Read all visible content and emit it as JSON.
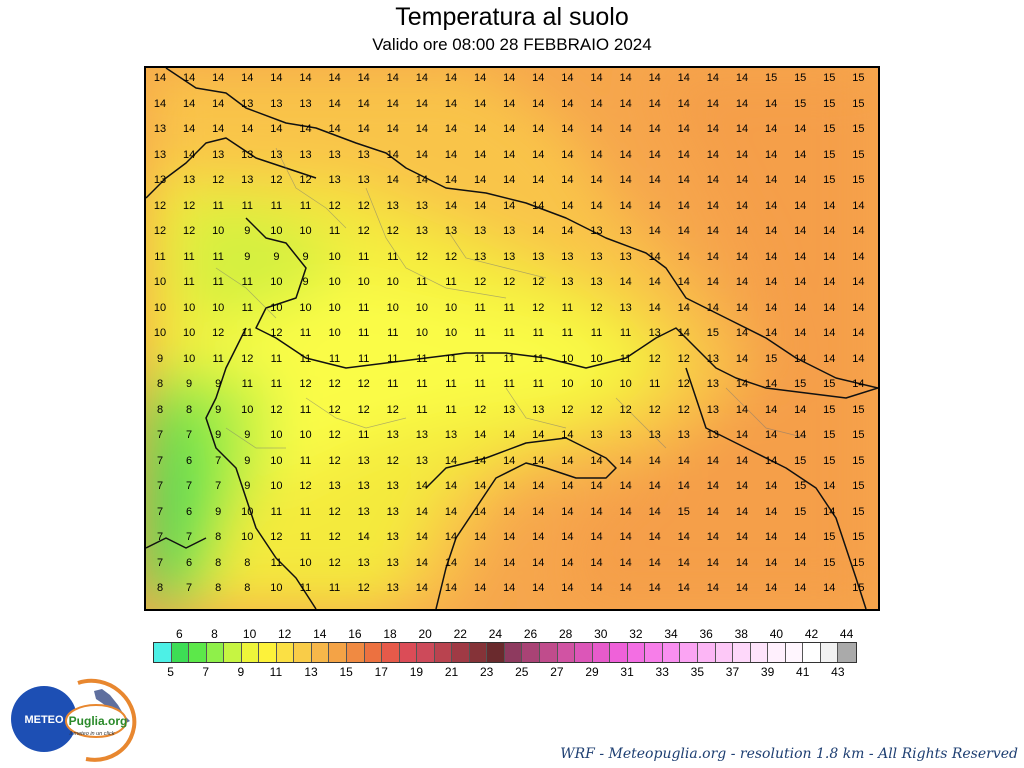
{
  "title": "Temperatura al suolo",
  "subtitle": "Valido ore 08:00 28 FEBBRAIO 2024",
  "footer": "WRF - Meteopuglia.org - resolution 1.8 km - All Rights Reserved",
  "logo": {
    "left_text": "METEO",
    "right_text": "Puglia.org",
    "tagline": "il meteo in un click"
  },
  "map": {
    "variable": "surface temperature",
    "unit": "°C",
    "grid_values": [
      [
        14,
        14,
        14,
        14,
        14,
        14,
        14,
        14,
        14,
        14,
        14,
        14,
        14,
        14,
        14,
        14,
        14,
        14,
        14,
        14,
        14,
        15,
        15,
        15,
        15
      ],
      [
        14,
        14,
        14,
        13,
        13,
        13,
        14,
        14,
        14,
        14,
        14,
        14,
        14,
        14,
        14,
        14,
        14,
        14,
        14,
        14,
        14,
        14,
        15,
        15,
        15
      ],
      [
        13,
        14,
        14,
        14,
        14,
        14,
        14,
        14,
        14,
        14,
        14,
        14,
        14,
        14,
        14,
        14,
        14,
        14,
        14,
        14,
        14,
        14,
        14,
        15,
        15
      ],
      [
        13,
        14,
        13,
        13,
        13,
        13,
        13,
        13,
        14,
        14,
        14,
        14,
        14,
        14,
        14,
        14,
        14,
        14,
        14,
        14,
        14,
        14,
        14,
        15,
        15
      ],
      [
        13,
        13,
        12,
        13,
        12,
        12,
        13,
        13,
        14,
        14,
        14,
        14,
        14,
        14,
        14,
        14,
        14,
        14,
        14,
        14,
        14,
        14,
        14,
        15,
        15
      ],
      [
        12,
        12,
        11,
        11,
        11,
        11,
        12,
        12,
        13,
        13,
        14,
        14,
        14,
        14,
        14,
        14,
        14,
        14,
        14,
        14,
        14,
        14,
        14,
        14,
        14
      ],
      [
        12,
        12,
        10,
        9,
        10,
        10,
        11,
        12,
        12,
        13,
        13,
        13,
        13,
        14,
        14,
        13,
        13,
        14,
        14,
        14,
        14,
        14,
        14,
        14,
        14
      ],
      [
        11,
        11,
        11,
        9,
        9,
        9,
        10,
        11,
        11,
        12,
        12,
        13,
        13,
        13,
        13,
        13,
        13,
        14,
        14,
        14,
        14,
        14,
        14,
        14,
        14
      ],
      [
        10,
        11,
        11,
        11,
        10,
        9,
        10,
        10,
        10,
        11,
        11,
        12,
        12,
        12,
        13,
        13,
        14,
        14,
        14,
        14,
        14,
        14,
        14,
        14,
        14
      ],
      [
        10,
        10,
        10,
        11,
        10,
        10,
        10,
        11,
        10,
        10,
        10,
        11,
        11,
        12,
        11,
        12,
        13,
        14,
        14,
        14,
        14,
        14,
        14,
        14,
        14
      ],
      [
        10,
        10,
        12,
        11,
        12,
        11,
        10,
        11,
        11,
        10,
        10,
        11,
        11,
        11,
        11,
        11,
        11,
        13,
        14,
        15,
        14,
        14,
        14,
        14,
        14
      ],
      [
        9,
        10,
        11,
        12,
        11,
        11,
        11,
        11,
        11,
        11,
        11,
        11,
        11,
        11,
        10,
        10,
        11,
        12,
        12,
        13,
        14,
        15,
        14,
        14,
        14
      ],
      [
        8,
        9,
        9,
        11,
        11,
        12,
        12,
        12,
        11,
        11,
        11,
        11,
        11,
        11,
        10,
        10,
        10,
        11,
        12,
        13,
        14,
        14,
        15,
        15,
        14
      ],
      [
        8,
        8,
        9,
        10,
        12,
        11,
        12,
        12,
        12,
        11,
        11,
        12,
        13,
        13,
        12,
        12,
        12,
        12,
        12,
        13,
        14,
        14,
        14,
        15,
        15
      ],
      [
        7,
        7,
        9,
        9,
        10,
        10,
        12,
        11,
        13,
        13,
        13,
        14,
        14,
        14,
        14,
        13,
        13,
        13,
        13,
        13,
        14,
        14,
        14,
        15,
        15
      ],
      [
        7,
        6,
        7,
        9,
        10,
        11,
        12,
        13,
        12,
        13,
        14,
        14,
        14,
        14,
        14,
        14,
        14,
        14,
        14,
        14,
        14,
        14,
        15,
        15,
        15
      ],
      [
        7,
        7,
        7,
        9,
        10,
        12,
        13,
        13,
        13,
        14,
        14,
        14,
        14,
        14,
        14,
        14,
        14,
        14,
        14,
        14,
        14,
        14,
        15,
        14,
        15
      ],
      [
        7,
        6,
        9,
        10,
        11,
        11,
        12,
        13,
        13,
        14,
        14,
        14,
        14,
        14,
        14,
        14,
        14,
        14,
        15,
        14,
        14,
        14,
        15,
        14,
        15
      ],
      [
        7,
        7,
        8,
        10,
        12,
        11,
        12,
        14,
        13,
        14,
        14,
        14,
        14,
        14,
        14,
        14,
        14,
        14,
        14,
        14,
        14,
        14,
        14,
        15,
        15
      ],
      [
        7,
        6,
        8,
        8,
        11,
        10,
        12,
        13,
        13,
        14,
        14,
        14,
        14,
        14,
        14,
        14,
        14,
        14,
        14,
        14,
        14,
        14,
        14,
        15,
        15
      ],
      [
        8,
        7,
        8,
        8,
        10,
        11,
        11,
        12,
        13,
        14,
        14,
        14,
        14,
        14,
        14,
        14,
        14,
        14,
        14,
        14,
        14,
        14,
        14,
        14,
        15
      ]
    ]
  },
  "legend": {
    "top_labels": [
      "6",
      "8",
      "10",
      "12",
      "14",
      "16",
      "18",
      "20",
      "22",
      "24",
      "26",
      "28",
      "30",
      "32",
      "34",
      "36",
      "38",
      "40",
      "42",
      "44"
    ],
    "bottom_labels": [
      "5",
      "7",
      "9",
      "11",
      "13",
      "15",
      "17",
      "19",
      "21",
      "23",
      "25",
      "27",
      "29",
      "31",
      "33",
      "35",
      "37",
      "39",
      "41",
      "43"
    ],
    "colors": [
      "#4df0e6",
      "#3ddd55",
      "#5ce84a",
      "#8ff04a",
      "#c6f542",
      "#eef53a",
      "#fdf23a",
      "#fbe044",
      "#f9cc48",
      "#f6b74a",
      "#f4a346",
      "#f08a42",
      "#ec7140",
      "#e65a4a",
      "#db4c57",
      "#cd4a5a",
      "#b9434f",
      "#a03a45",
      "#853338",
      "#6a2a2d",
      "#8e3a5f",
      "#a94375",
      "#c04c8c",
      "#d153a3",
      "#dc56b8",
      "#e75bcb",
      "#ef61d9",
      "#f36ee3",
      "#f77ee9",
      "#f98ff0",
      "#fba4f3",
      "#fcb6f5",
      "#fdc8f7",
      "#fed8fa",
      "#fee4fb",
      "#fff0fd",
      "#fff6fe",
      "#ffffff",
      "#f2f2f2",
      "#aaaaaa"
    ]
  }
}
